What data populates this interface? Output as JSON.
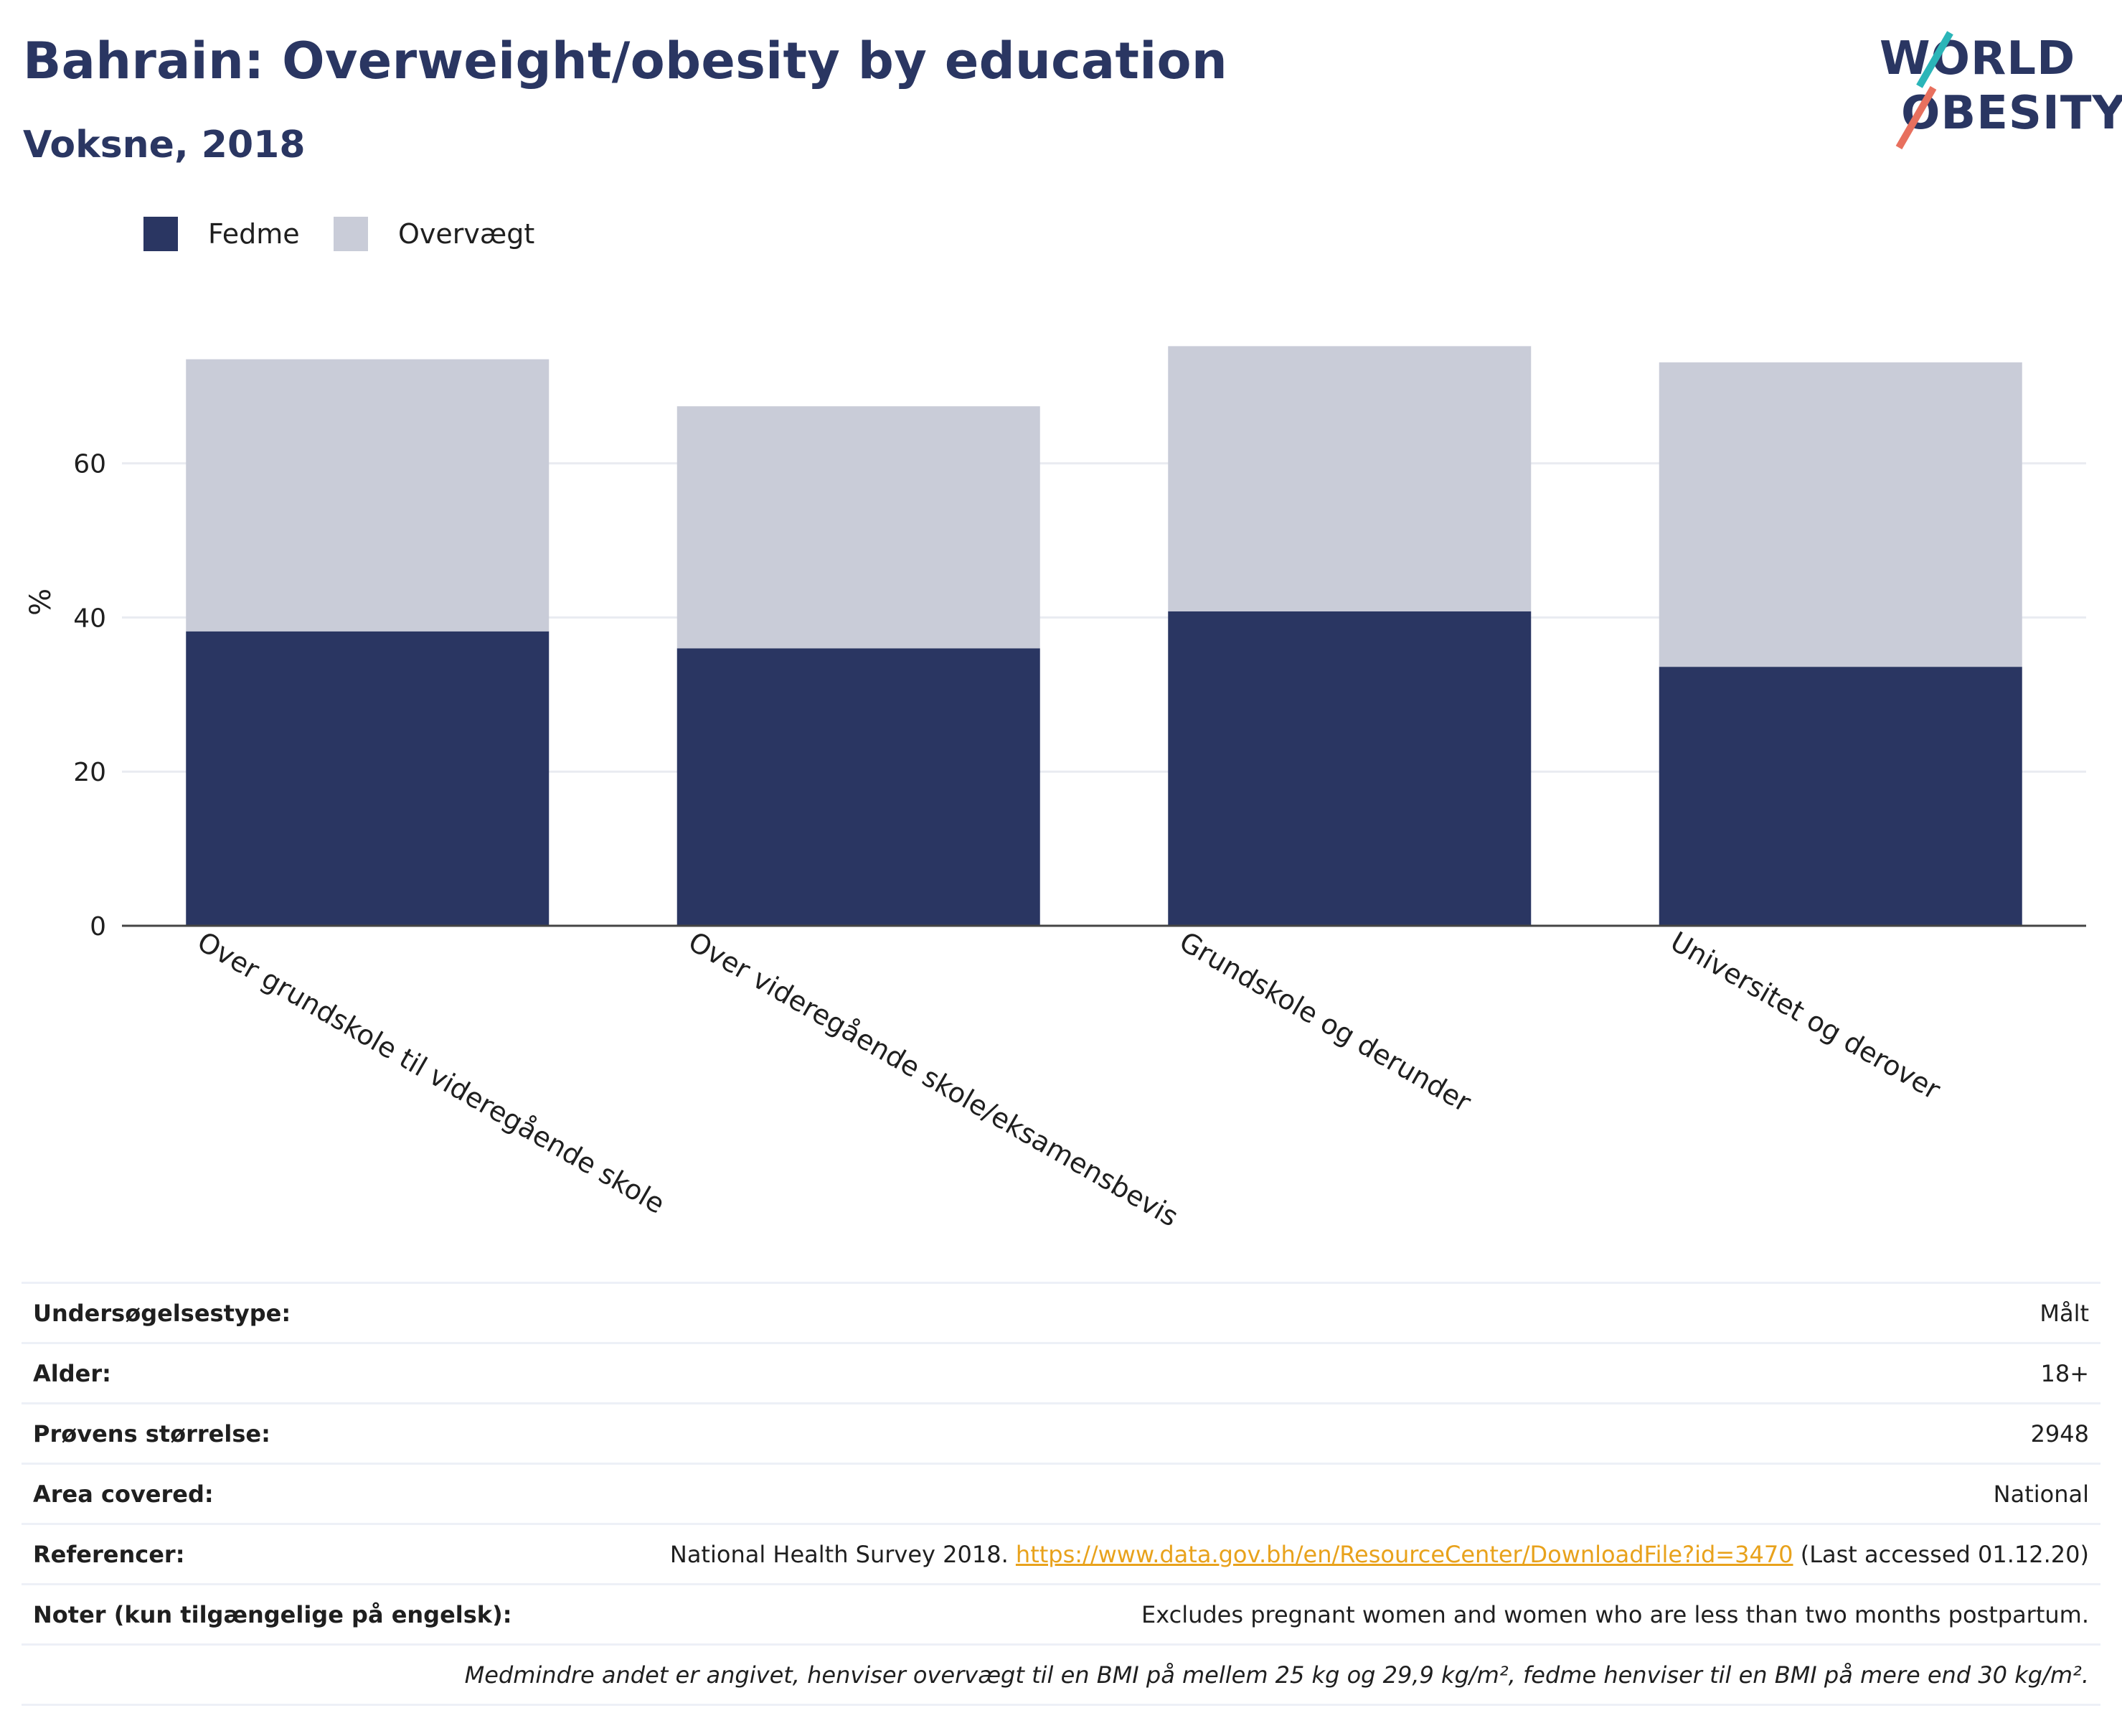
{
  "header": {
    "title": "Bahrain: Overweight/obesity by education",
    "subtitle": "Voksne, 2018"
  },
  "logo": {
    "line1": "WORLD",
    "line2": "OBESITY",
    "accent_teal": "#2bb5b8",
    "accent_coral": "#e8705e"
  },
  "legend": [
    {
      "label": "Fedme",
      "color": "#2a3662"
    },
    {
      "label": "Overvægt",
      "color": "#c9ccd8"
    }
  ],
  "chart_data": {
    "type": "bar",
    "stacked": true,
    "categories": [
      "Over grundskole til videregående skole",
      "Over videregående skole/eksamensbevis",
      "Grundskole og derunder",
      "Universitet og derover"
    ],
    "series": [
      {
        "name": "Fedme",
        "color": "#2a3662",
        "values": [
          38.2,
          36.0,
          40.8,
          33.6
        ]
      },
      {
        "name": "Overvægt",
        "color": "#c9ccd8",
        "values": [
          35.3,
          31.4,
          34.4,
          39.5
        ]
      }
    ],
    "ylabel": "%",
    "xlabel": "",
    "ylim": [
      0,
      80
    ],
    "yticks": [
      0,
      20,
      40,
      60
    ],
    "grid": true,
    "legend_position": "top-left"
  },
  "meta": {
    "rows": [
      {
        "key": "Undersøgelsestype:",
        "value": "Målt"
      },
      {
        "key": "Alder:",
        "value": "18+"
      },
      {
        "key": "Prøvens størrelse:",
        "value": "2948"
      },
      {
        "key": "Area covered:",
        "value": "National"
      }
    ],
    "references": {
      "key": "Referencer:",
      "prefix": "National Health Survey 2018. ",
      "link": "https://www.data.gov.bh/en/ResourceCenter/DownloadFile?id=3470",
      "suffix": " (Last accessed 01.12.20)"
    },
    "notes": {
      "key": "Noter (kun tilgængelige på engelsk):",
      "value": "Excludes pregnant women and women who are less than two months postpartum."
    },
    "footnote": "Medmindre andet er angivet, henviser overvægt til en BMI på mellem 25 kg og 29,9 kg/m², fedme henviser til en BMI på mere end 30 kg/m²."
  }
}
